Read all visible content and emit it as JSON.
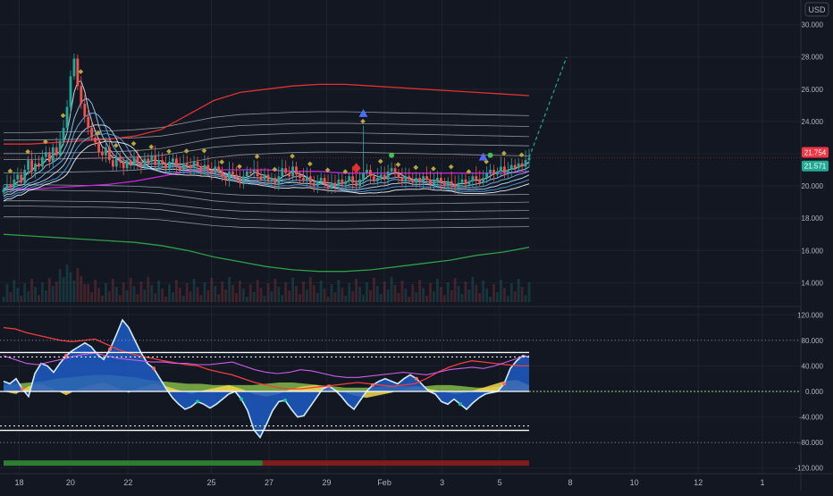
{
  "currency_label": "USD",
  "colors": {
    "background": "#131722",
    "grid": "#1e222d",
    "axis_text": "#b2b5be",
    "up": "#26a69a",
    "down": "#ef5350",
    "upper_band": "#e03131",
    "lower_band": "#2f9e44",
    "inner_band": "#c026d3",
    "price_tag_red": "#f23645",
    "price_tag_green": "#22ab94"
  },
  "chart_data": [
    {
      "type": "candlestick",
      "y_ticks": [
        "30.000",
        "28.000",
        "26.000",
        "24.000",
        "22.000",
        "20.000",
        "18.000",
        "16.000",
        "14.000"
      ],
      "y_tick_values": [
        30,
        28,
        26,
        24,
        22,
        20,
        18,
        16,
        14
      ],
      "ylim": [
        12.8,
        31.2
      ],
      "x_ticks": [
        "18",
        "20",
        "22",
        "25",
        "27",
        "29",
        "Feb",
        "3",
        "5",
        "8",
        "10",
        "12",
        "1"
      ],
      "x_tick_index": [
        0,
        16,
        34,
        60,
        78,
        96,
        114,
        132,
        150,
        172,
        192,
        212,
        232
      ],
      "x_range": [
        -6,
        244
      ],
      "last_price_labels": [
        "21.754",
        "21.571"
      ],
      "last_price_values": [
        21.754,
        21.571
      ],
      "closes": [
        19.8,
        20.1,
        19.9,
        20.4,
        20.7,
        20.2,
        21.0,
        21.6,
        20.9,
        21.4,
        21.2,
        21.8,
        22.1,
        21.5,
        22.4,
        21.9,
        22.8,
        23.6,
        24.9,
        26.8,
        27.9,
        26.2,
        25.1,
        24.3,
        23.6,
        23.0,
        22.7,
        22.1,
        21.9,
        22.4,
        21.6,
        21.2,
        21.8,
        21.5,
        21.1,
        21.6,
        21.3,
        21.8,
        21.4,
        21.2,
        21.7,
        21.5,
        21.9,
        21.3,
        21.6,
        21.4,
        21.1,
        21.5,
        21.7,
        21.2,
        21.0,
        21.4,
        21.3,
        21.1,
        21.5,
        21.2,
        20.9,
        21.3,
        21.0,
        20.8,
        21.2,
        20.9,
        20.6,
        20.4,
        20.9,
        20.7,
        20.5,
        20.2,
        20.6,
        20.9,
        20.8,
        21.0,
        20.6,
        20.4,
        20.7,
        20.3,
        20.5,
        20.1,
        20.6,
        21.1,
        20.8,
        20.6,
        21.2,
        20.7,
        20.5,
        20.3,
        20.6,
        20.2,
        20.0,
        20.3,
        20.5,
        20.1,
        19.9,
        20.2,
        20.0,
        20.4,
        20.1,
        20.3,
        20.6,
        20.2,
        20.0,
        20.4,
        20.8,
        21.0,
        20.6,
        20.3,
        20.5,
        20.7,
        20.4,
        20.9,
        21.1,
        20.8,
        20.5,
        20.3,
        20.6,
        20.4,
        20.2,
        20.5,
        20.3,
        20.6,
        20.4,
        20.1,
        20.3,
        20.5,
        20.2,
        20.0,
        20.3,
        20.1,
        19.9,
        20.2,
        20.4,
        20.1,
        20.3,
        20.6,
        20.4,
        20.2,
        20.5,
        20.8,
        21.0,
        20.7,
        20.9,
        21.2,
        20.8,
        21.0,
        21.3,
        21.1,
        21.4,
        21.2,
        21.6,
        21.754
      ],
      "upper_band": [
        22.6,
        22.6,
        22.7,
        22.8,
        22.9,
        23.1,
        23.5,
        24.4,
        25.3,
        25.8,
        26.0,
        26.2,
        26.3,
        26.3,
        26.2,
        26.1,
        26.0,
        25.9,
        25.8,
        25.7,
        25.6
      ],
      "inner_band": [
        19.8,
        19.8,
        19.9,
        20.0,
        20.1,
        20.3,
        20.6,
        20.9,
        21.0,
        21.0,
        21.0,
        20.9,
        20.9,
        20.8,
        20.8,
        20.8,
        20.8,
        20.8,
        20.8,
        20.8,
        20.9
      ],
      "lower_band": [
        17.0,
        16.9,
        16.8,
        16.7,
        16.6,
        16.5,
        16.3,
        16.0,
        15.6,
        15.3,
        15.0,
        14.8,
        14.7,
        14.7,
        14.8,
        15.0,
        15.2,
        15.4,
        15.7,
        15.9,
        16.2
      ],
      "signals": [
        {
          "kind": "triangle-up",
          "color": "#4c6ef5",
          "index": 102,
          "value": 24.5
        },
        {
          "kind": "triangle-up",
          "color": "#4c6ef5",
          "index": 136,
          "value": 21.8
        },
        {
          "kind": "diamond",
          "color": "#e03131",
          "index": 100,
          "value": 21.1
        },
        {
          "kind": "dot",
          "color": "#40c057",
          "index": 110,
          "value": 21.9
        },
        {
          "kind": "dot",
          "color": "#40c057",
          "index": 138,
          "value": 21.9
        }
      ]
    },
    {
      "type": "area",
      "y_ticks": [
        "120.000",
        "80.000",
        "40.000",
        "0.000",
        "-40.000",
        "-80.000",
        "-120.000"
      ],
      "y_tick_values": [
        120,
        80,
        40,
        0,
        -40,
        -80,
        -120
      ],
      "ylim": [
        -126,
        126
      ],
      "main_wave": [
        16,
        12,
        20,
        4,
        -8,
        28,
        44,
        40,
        30,
        44,
        56,
        64,
        70,
        76,
        70,
        58,
        50,
        66,
        88,
        112,
        100,
        80,
        60,
        44,
        36,
        20,
        4,
        -10,
        -20,
        -28,
        -24,
        -16,
        -20,
        -26,
        -20,
        -12,
        -4,
        0,
        -12,
        -30,
        -60,
        -72,
        -52,
        -30,
        -16,
        -14,
        -28,
        -40,
        -38,
        -24,
        -10,
        4,
        8,
        2,
        -8,
        -20,
        -28,
        -14,
        0,
        10,
        16,
        20,
        16,
        12,
        20,
        26,
        20,
        10,
        0,
        -4,
        -16,
        -20,
        -12,
        -20,
        -28,
        -18,
        -10,
        -4,
        -2,
        0,
        12,
        36,
        48,
        56,
        54
      ],
      "red_line": [
        100,
        98,
        92,
        88,
        84,
        80,
        78,
        80,
        82,
        74,
        66,
        60,
        55,
        52,
        48,
        45,
        42,
        40,
        34,
        30,
        26,
        20,
        14,
        10,
        6,
        4,
        4,
        6,
        8,
        10,
        12,
        14,
        12,
        10,
        8,
        10,
        12,
        20,
        30,
        38,
        44,
        48,
        46,
        44,
        42,
        40,
        40
      ],
      "magenta_line": [
        56,
        50,
        44,
        42,
        46,
        50,
        54,
        58,
        60,
        56,
        52,
        50,
        48,
        46,
        46,
        44,
        44,
        42,
        42,
        44,
        46,
        40,
        34,
        30,
        28,
        30,
        34,
        32,
        28,
        24,
        22,
        22,
        24,
        26,
        28,
        30,
        28,
        26,
        30,
        34,
        36,
        38,
        36,
        40,
        46,
        52,
        56
      ],
      "yellow_area": [
        0,
        -4,
        8,
        12,
        4,
        -6,
        4,
        10,
        14,
        6,
        -2,
        6,
        12,
        8,
        2,
        -4,
        2,
        6,
        10,
        4,
        -4,
        -8,
        -4,
        4,
        8,
        10,
        6,
        0,
        -6,
        -10,
        -6,
        -2,
        4,
        8,
        4,
        0,
        -4,
        -2,
        4,
        10,
        16,
        18,
        10
      ],
      "green_area": [
        10,
        12,
        14,
        16,
        20,
        22,
        24,
        26,
        26,
        24,
        22,
        18,
        16,
        14,
        12,
        12,
        10,
        10,
        10,
        10,
        12,
        14,
        14,
        12,
        10,
        8,
        6,
        6,
        6,
        8,
        8,
        8,
        8,
        10,
        10,
        8,
        6,
        6,
        8,
        8,
        10
      ],
      "reference_lines": [
        61,
        54,
        -54,
        -61
      ],
      "zero_line_color": "#9bd36a",
      "signal_bar": {
        "switch_fraction": 0.493,
        "left_color": "#2f7d32",
        "right_color": "#7f1d1d"
      }
    }
  ]
}
